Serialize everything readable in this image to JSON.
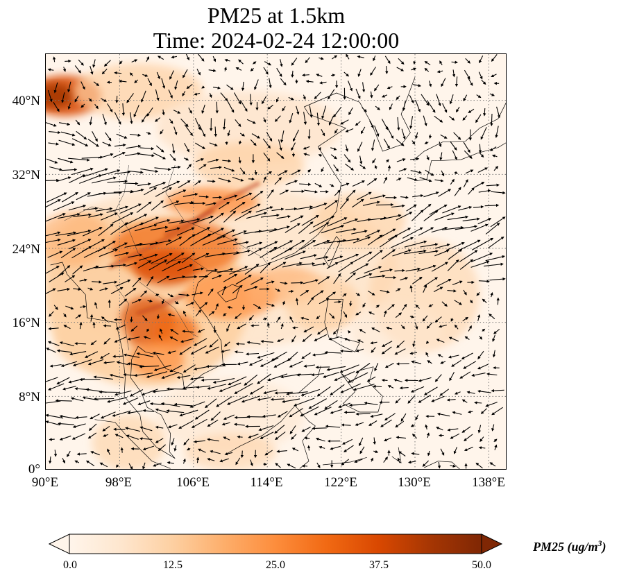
{
  "title_line1": "PM25 at 1.5km",
  "title_line2": "Time: 2024-02-24 12:00:00",
  "lon_ticks": [
    "90°E",
    "98°E",
    "106°E",
    "114°E",
    "122°E",
    "130°E",
    "138°E"
  ],
  "lat_ticks": [
    "40°N",
    "32°N",
    "24°N",
    "16°N",
    "8°N",
    "0°"
  ],
  "colorbar": {
    "label_main": "PM25 (ug/m",
    "label_sup": "3",
    "label_close": ")",
    "ticks": [
      "0.0",
      "12.5",
      "25.0",
      "37.5",
      "50.0"
    ],
    "min": 0,
    "max": 50,
    "colors": [
      "#fff5eb",
      "#fee6ce",
      "#fdd0a2",
      "#fdae6b",
      "#fd8d3c",
      "#f16913",
      "#d94801",
      "#a63603",
      "#7f2704"
    ]
  },
  "map": {
    "lon_range": [
      90,
      140
    ],
    "lat_range": [
      0,
      45
    ],
    "gridlines": "dotted",
    "land_color": "#fff1e0",
    "coastline_color": "#000000",
    "vector_color": "#000000"
  }
}
